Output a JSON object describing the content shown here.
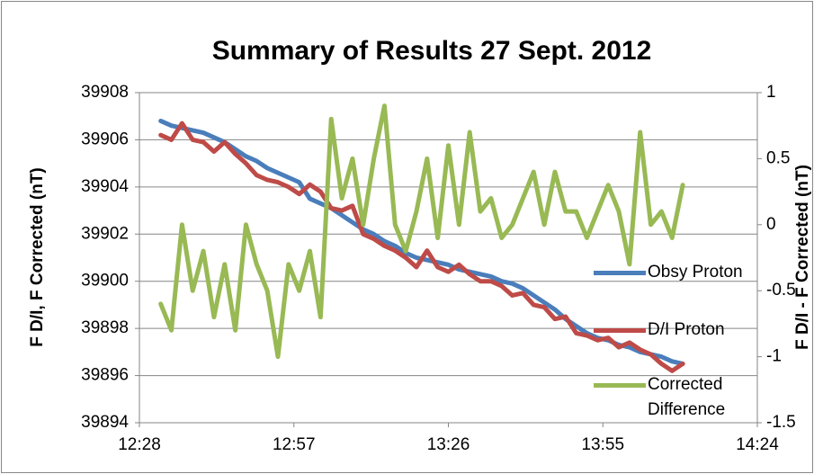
{
  "chart_data": {
    "type": "line",
    "title": "Summary of Results 27 Sept. 2012",
    "y_label": "F D/I, F Corrected (nT)",
    "y2_label": "F D/I - F Corrected (nT)",
    "x": [
      752,
      754,
      756,
      758,
      760,
      762,
      764,
      766,
      768,
      770,
      772,
      774,
      776,
      778,
      780,
      782,
      784,
      786,
      788,
      790,
      792,
      794,
      796,
      798,
      800,
      802,
      804,
      806,
      808,
      810,
      812,
      814,
      816,
      818,
      820,
      822,
      824,
      826,
      828,
      830,
      832,
      834,
      836,
      838,
      840,
      842,
      844,
      846,
      848,
      850
    ],
    "xlim": [
      748,
      864
    ],
    "xticks": [
      {
        "value": 748,
        "label": "12:28"
      },
      {
        "value": 777,
        "label": "12:57"
      },
      {
        "value": 806,
        "label": "13:26"
      },
      {
        "value": 835,
        "label": "13:55"
      },
      {
        "value": 864,
        "label": "14:24"
      }
    ],
    "ylim": [
      39894,
      39908
    ],
    "yticks": [
      39894,
      39896,
      39898,
      39900,
      39902,
      39904,
      39906,
      39908
    ],
    "y2lim": [
      -1.5,
      1
    ],
    "y2ticks": [
      -1.5,
      -1,
      -0.5,
      0,
      0.5,
      1
    ],
    "grid": true,
    "legend": "right",
    "series": [
      {
        "name": "Obsy Proton",
        "color": "#4a7ebb",
        "values": [
          39906.8,
          39906.6,
          39906.5,
          39906.4,
          39906.3,
          39906.1,
          39905.9,
          39905.6,
          39905.3,
          39905.1,
          39904.8,
          39904.6,
          39904.4,
          39904.2,
          39903.5,
          39903.3,
          39903.1,
          39902.8,
          39902.5,
          39902.2,
          39902.0,
          39901.7,
          39901.5,
          39901.2,
          39901.0,
          39900.9,
          39900.8,
          39900.7,
          39900.5,
          39900.4,
          39900.3,
          39900.2,
          39900.0,
          39899.9,
          39899.7,
          39899.4,
          39899.1,
          39898.8,
          39898.4,
          39898.1,
          39897.8,
          39897.6,
          39897.5,
          39897.3,
          39897.2,
          39897.0,
          39896.9,
          39896.8,
          39896.6,
          39896.5
        ]
      },
      {
        "name": "D/I Proton",
        "color": "#be4b48",
        "values": [
          39906.2,
          39906.0,
          39906.7,
          39906.0,
          39905.9,
          39905.5,
          39905.9,
          39905.4,
          39905.0,
          39904.5,
          39904.3,
          39904.2,
          39904.0,
          39903.7,
          39904.1,
          39903.8,
          39903.1,
          39903.0,
          39903.2,
          39902.0,
          39901.8,
          39901.5,
          39901.3,
          39901.0,
          39900.6,
          39901.3,
          39900.6,
          39900.4,
          39900.7,
          39900.3,
          39900.0,
          39900.0,
          39899.8,
          39899.4,
          39899.5,
          39899.0,
          39898.9,
          39898.4,
          39898.5,
          39897.8,
          39897.7,
          39897.5,
          39897.6,
          39897.2,
          39897.4,
          39897.1,
          39896.9,
          39896.5,
          39896.2,
          39896.5
        ]
      },
      {
        "name": "Corrected Difference",
        "color": "#98b954",
        "axis": "y2",
        "values": [
          -0.6,
          -0.8,
          0.0,
          -0.5,
          -0.2,
          -0.7,
          -0.3,
          -0.8,
          0.0,
          -0.3,
          -0.5,
          -1.0,
          -0.3,
          -0.5,
          -0.2,
          -0.7,
          0.8,
          0.2,
          0.5,
          0.0,
          0.5,
          0.9,
          0.0,
          -0.2,
          0.1,
          0.5,
          -0.1,
          0.6,
          0.0,
          0.7,
          0.1,
          0.2,
          -0.1,
          0.0,
          0.2,
          0.4,
          0.0,
          0.4,
          0.1,
          0.1,
          -0.1,
          0.1,
          0.3,
          0.1,
          -0.3,
          0.7,
          0.0,
          0.1,
          -0.1,
          0.3
        ]
      }
    ]
  }
}
